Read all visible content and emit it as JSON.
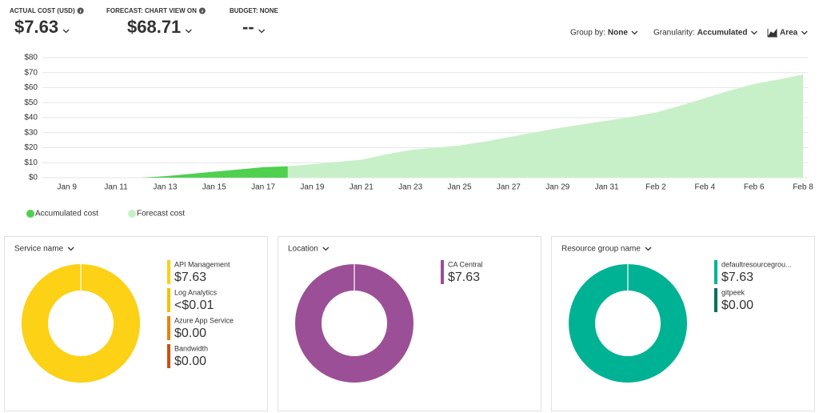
{
  "header": {
    "kpis": [
      {
        "label": "ACTUAL COST (USD)",
        "value": "$7.63",
        "info": true
      },
      {
        "label": "FORECAST: CHART VIEW ON",
        "value": "$68.71",
        "info": true
      },
      {
        "label": "BUDGET: NONE",
        "value": "--",
        "info": false
      }
    ]
  },
  "controls": [
    {
      "label": "Group by:",
      "value": "None"
    },
    {
      "label": "Granularity:",
      "value": "Accumulated"
    },
    {
      "value": "Area"
    }
  ],
  "chart_data": [
    {
      "type": "area",
      "categories": [
        null,
        "Jan 9",
        null,
        "Jan 11",
        null,
        "Jan 13",
        null,
        "Jan 15",
        null,
        "Jan 17",
        null,
        "Jan 19",
        null,
        "Jan 21",
        null,
        "Jan 23",
        null,
        "Jan 25",
        null,
        "Jan 27",
        null,
        "Jan 29",
        null,
        "Jan 31",
        null,
        "Feb 2",
        null,
        "Feb 4",
        null,
        "Feb 6",
        null,
        "Feb 8"
      ],
      "series": [
        {
          "name": "Accumulated cost",
          "color": "#4fd04f",
          "values": [
            0,
            0,
            0,
            0,
            0,
            1,
            2.5,
            4,
            5.5,
            7,
            7.63,
            null,
            null,
            null,
            null,
            null,
            null,
            null,
            null,
            null,
            null,
            null,
            null,
            null,
            null,
            null,
            null,
            null,
            null,
            null,
            null,
            null
          ]
        },
        {
          "name": "Forecast cost",
          "color": "#c8f0c8",
          "values": [
            null,
            null,
            null,
            null,
            null,
            null,
            null,
            null,
            null,
            null,
            7.63,
            9,
            10.5,
            12,
            15.5,
            18.5,
            20,
            21.5,
            24,
            27,
            30,
            33,
            35.5,
            38,
            40.5,
            43.5,
            48,
            53,
            58,
            62.5,
            65.5,
            68.71
          ]
        }
      ],
      "ylim": [
        0,
        80
      ],
      "yticks": [
        {
          "value": 0,
          "label": "$0"
        },
        {
          "value": 10,
          "label": "$10"
        },
        {
          "value": 20,
          "label": "$20"
        },
        {
          "value": 30,
          "label": "$30"
        },
        {
          "value": 40,
          "label": "$40"
        },
        {
          "value": 50,
          "label": "$50"
        },
        {
          "value": 60,
          "label": "$60"
        },
        {
          "value": 70,
          "label": "$70"
        },
        {
          "value": 80,
          "label": "$80"
        }
      ],
      "grid": true
    },
    {
      "type": "donut",
      "title": "Service name",
      "categories": [
        "API Management",
        "Log Analytics",
        "Azure App Service",
        "Bandwidth"
      ],
      "values": [
        7.63,
        0.004,
        0,
        0
      ],
      "value_labels": [
        "$7.63",
        "<$0.01",
        "$0.00",
        "$0.00"
      ],
      "colors": [
        "#fcd116",
        "#f2c200",
        "#e8820e",
        "#ca5010"
      ]
    },
    {
      "type": "donut",
      "title": "Location",
      "categories": [
        "CA Central"
      ],
      "values": [
        7.63
      ],
      "value_labels": [
        "$7.63"
      ],
      "colors": [
        "#9b4f96"
      ]
    },
    {
      "type": "donut",
      "title": "Resource group name",
      "categories": [
        "defaultresourcegrou...",
        "gitpeek"
      ],
      "values": [
        7.63,
        0
      ],
      "value_labels": [
        "$7.63",
        "$0.00"
      ],
      "colors": [
        "#00b294",
        "#006f5c"
      ]
    }
  ]
}
